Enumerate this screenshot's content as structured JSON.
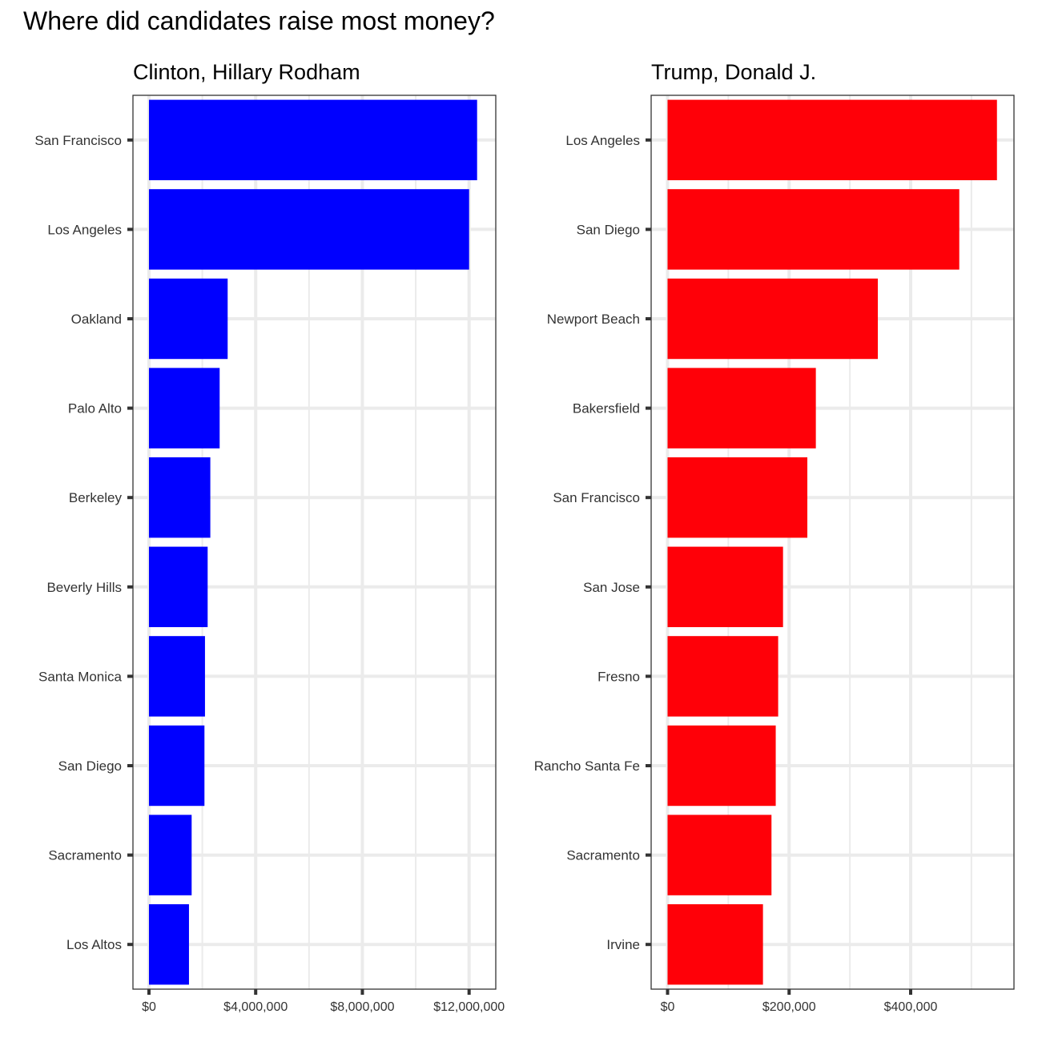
{
  "title": "Where did candidates raise most money?",
  "chart_data": [
    {
      "type": "bar",
      "orientation": "horizontal",
      "title": "Clinton, Hillary Rodham",
      "color": "#0000ff",
      "categories": [
        "San Francisco",
        "Los Angeles",
        "Oakland",
        "Palo Alto",
        "Berkeley",
        "Beverly Hills",
        "Santa Monica",
        "San Diego",
        "Sacramento",
        "Los Altos"
      ],
      "values": [
        12300000,
        12000000,
        2950000,
        2650000,
        2300000,
        2200000,
        2100000,
        2080000,
        1600000,
        1500000
      ],
      "xlim": [
        -600000,
        13000000
      ],
      "xticks": [
        0,
        4000000,
        8000000,
        12000000
      ],
      "xtick_labels": [
        "$0",
        "$4,000,000",
        "$8,000,000",
        "$12,000,000"
      ],
      "grid": true
    },
    {
      "type": "bar",
      "orientation": "horizontal",
      "title": "Trump, Donald J.",
      "color": "#ff0008",
      "categories": [
        "Los Angeles",
        "San Diego",
        "Newport Beach",
        "Bakersfield",
        "San Francisco",
        "San Jose",
        "Fresno",
        "Rancho Santa Fe",
        "Sacramento",
        "Irvine"
      ],
      "values": [
        542000,
        480000,
        346000,
        244000,
        230000,
        190000,
        182000,
        178000,
        171000,
        157000
      ],
      "xlim": [
        -27000,
        570000
      ],
      "xticks": [
        0,
        200000,
        400000
      ],
      "xtick_labels": [
        "$0",
        "$200,000",
        "$400,000"
      ],
      "grid": true
    }
  ]
}
